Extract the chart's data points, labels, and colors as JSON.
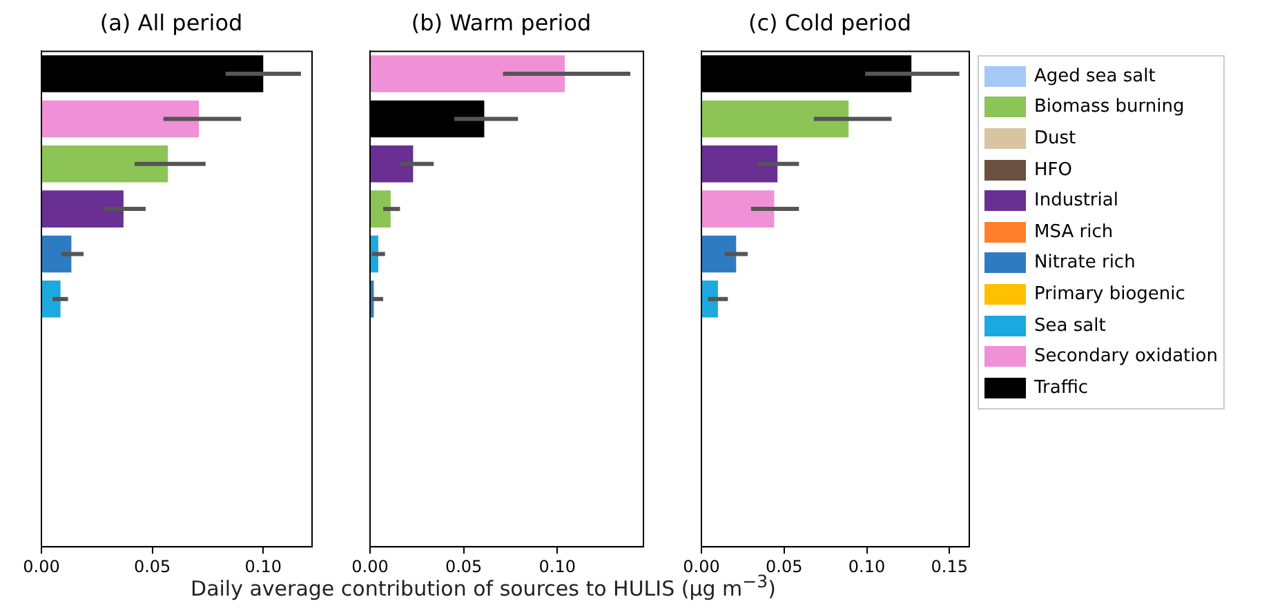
{
  "chart_data": [
    {
      "type": "bar",
      "title": "(a) All period",
      "orientation": "horizontal",
      "stacked": true,
      "tick_labels": "x",
      "legend": false,
      "categories": [
        null,
        null,
        null,
        null,
        null,
        null,
        null,
        null,
        null,
        null,
        null
      ],
      "xlim": [
        0,
        0.122
      ],
      "xticks": [
        {
          "value": 0,
          "label": "0.00"
        },
        {
          "value": 0.05,
          "label": "0.05"
        },
        {
          "value": 0.1,
          "label": "0.10"
        }
      ],
      "series": [
        {
          "color": "#a6c8f5",
          "values": [
            null,
            null,
            null,
            null,
            null,
            null,
            null,
            null,
            null,
            null,
            null
          ]
        },
        {
          "color": "#8cc456",
          "values": [
            null,
            null,
            0.057,
            null,
            null,
            null,
            null,
            null,
            null,
            null,
            null
          ],
          "errors": [
            null,
            null,
            [
              0.042,
              0.074
            ],
            null,
            null,
            null,
            null,
            null,
            null,
            null,
            null
          ]
        },
        {
          "color": "#d8c4a0",
          "values": [
            null,
            null,
            null,
            null,
            null,
            null,
            null,
            null,
            null,
            null,
            null
          ]
        },
        {
          "color": "#6b4f3f",
          "values": [
            null,
            null,
            null,
            null,
            null,
            null,
            null,
            null,
            null,
            null,
            null
          ]
        },
        {
          "color": "#6a2f92",
          "values": [
            null,
            null,
            null,
            0.037,
            null,
            null,
            null,
            null,
            null,
            null,
            null
          ],
          "errors": [
            null,
            null,
            null,
            [
              0.028,
              0.047
            ],
            null,
            null,
            null,
            null,
            null,
            null,
            null
          ]
        },
        {
          "color": "#ff7f2a",
          "values": [
            null,
            null,
            null,
            null,
            null,
            null,
            null,
            null,
            null,
            null,
            null
          ]
        },
        {
          "color": "#2f7bc2",
          "values": [
            null,
            null,
            null,
            null,
            0.0135,
            null,
            null,
            null,
            null,
            null,
            null
          ],
          "errors": [
            null,
            null,
            null,
            null,
            [
              0.009,
              0.019
            ],
            null,
            null,
            null,
            null,
            null,
            null
          ]
        },
        {
          "color": "#ffc000",
          "values": [
            null,
            null,
            null,
            null,
            null,
            null,
            null,
            null,
            null,
            null,
            null
          ]
        },
        {
          "color": "#1ba9e0",
          "values": [
            null,
            null,
            null,
            null,
            null,
            0.0086,
            null,
            null,
            null,
            null,
            null
          ],
          "errors": [
            null,
            null,
            null,
            null,
            null,
            [
              0.005,
              0.012
            ],
            null,
            null,
            null,
            null,
            null
          ]
        },
        {
          "color": "#f090d6",
          "values": [
            null,
            0.071,
            null,
            null,
            null,
            null,
            null,
            null,
            null,
            null,
            null
          ],
          "errors": [
            null,
            [
              0.055,
              0.09
            ],
            null,
            null,
            null,
            null,
            null,
            null,
            null,
            null,
            null
          ]
        },
        {
          "color": "#000000",
          "values": [
            0.1,
            null,
            null,
            null,
            null,
            null,
            null,
            null,
            null,
            null,
            null
          ],
          "errors": [
            [
              0.083,
              0.117
            ],
            null,
            null,
            null,
            null,
            null,
            null,
            null,
            null,
            null,
            null
          ]
        }
      ]
    },
    {
      "type": "bar",
      "title": "(b) Warm period",
      "orientation": "horizontal",
      "stacked": true,
      "tick_labels": "x",
      "legend": false,
      "xlabel": "Daily average contribution of sources to HULIS (µg m$^{−3}$)",
      "categories": [
        null,
        null,
        null,
        null,
        null,
        null,
        null,
        null,
        null,
        null,
        null
      ],
      "xlim": [
        0,
        0.146
      ],
      "xticks": [
        {
          "value": 0,
          "label": "0.00"
        },
        {
          "value": 0.05,
          "label": "0.05"
        },
        {
          "value": 0.1,
          "label": "0.10"
        }
      ],
      "series": [
        {
          "color": "#a6c8f5",
          "values": [
            null,
            null,
            null,
            null,
            null,
            null,
            null,
            null,
            null,
            null,
            null
          ]
        },
        {
          "color": "#8cc456",
          "values": [
            null,
            null,
            null,
            0.011,
            null,
            null,
            null,
            null,
            null,
            null,
            null
          ],
          "errors": [
            null,
            null,
            null,
            [
              0.007,
              0.016
            ],
            null,
            null,
            null,
            null,
            null,
            null,
            null
          ]
        },
        {
          "color": "#d8c4a0",
          "values": [
            null,
            null,
            null,
            null,
            null,
            null,
            null,
            null,
            null,
            null,
            null
          ]
        },
        {
          "color": "#6b4f3f",
          "values": [
            null,
            null,
            null,
            null,
            null,
            null,
            null,
            null,
            null,
            null,
            null
          ]
        },
        {
          "color": "#6a2f92",
          "values": [
            null,
            null,
            0.023,
            null,
            null,
            null,
            null,
            null,
            null,
            null,
            null
          ],
          "errors": [
            null,
            null,
            [
              0.016,
              0.034
            ],
            null,
            null,
            null,
            null,
            null,
            null,
            null,
            null
          ]
        },
        {
          "color": "#ff7f2a",
          "values": [
            null,
            null,
            null,
            null,
            null,
            null,
            null,
            null,
            null,
            null,
            null
          ]
        },
        {
          "color": "#2f7bc2",
          "values": [
            null,
            null,
            null,
            null,
            null,
            0.002,
            null,
            null,
            null,
            null,
            null
          ],
          "errors": [
            null,
            null,
            null,
            null,
            null,
            [
              0.001,
              0.007
            ],
            null,
            null,
            null,
            null,
            null
          ]
        },
        {
          "color": "#ffc000",
          "values": [
            null,
            null,
            null,
            null,
            null,
            null,
            null,
            null,
            null,
            null,
            null
          ]
        },
        {
          "color": "#1ba9e0",
          "values": [
            null,
            null,
            null,
            null,
            0.0044,
            null,
            null,
            null,
            null,
            null,
            null
          ],
          "errors": [
            null,
            null,
            null,
            null,
            [
              0.001,
              0.008
            ],
            null,
            null,
            null,
            null,
            null,
            null
          ]
        },
        {
          "color": "#f090d6",
          "values": [
            0.104,
            null,
            null,
            null,
            null,
            null,
            null,
            null,
            null,
            null,
            null
          ],
          "errors": [
            [
              0.071,
              0.139
            ],
            null,
            null,
            null,
            null,
            null,
            null,
            null,
            null,
            null,
            null
          ]
        },
        {
          "color": "#000000",
          "values": [
            null,
            0.061,
            null,
            null,
            null,
            null,
            null,
            null,
            null,
            null,
            null
          ],
          "errors": [
            null,
            [
              0.045,
              0.079
            ],
            null,
            null,
            null,
            null,
            null,
            null,
            null,
            null,
            null
          ]
        }
      ]
    },
    {
      "type": "bar",
      "title": "(c) Cold period",
      "orientation": "horizontal",
      "stacked": true,
      "tick_labels": "x",
      "legend": "right",
      "categories": [
        null,
        null,
        null,
        null,
        null,
        null,
        null,
        null,
        null,
        null,
        null
      ],
      "xlim": [
        0,
        0.162
      ],
      "xticks": [
        {
          "value": 0,
          "label": "0.00"
        },
        {
          "value": 0.05,
          "label": "0.05"
        },
        {
          "value": 0.1,
          "label": "0.10"
        },
        {
          "value": 0.15,
          "label": "0.15"
        }
      ],
      "series": [
        {
          "name": "Aged sea salt",
          "color": "#a6c8f5",
          "values": [
            null,
            null,
            null,
            null,
            null,
            null,
            null,
            null,
            null,
            null,
            null
          ]
        },
        {
          "name": "Biomass burning",
          "color": "#8cc456",
          "values": [
            null,
            0.089,
            null,
            null,
            null,
            null,
            null,
            null,
            null,
            null,
            null
          ],
          "errors": [
            null,
            [
              0.068,
              0.115
            ],
            null,
            null,
            null,
            null,
            null,
            null,
            null,
            null,
            null
          ]
        },
        {
          "name": "Dust",
          "color": "#d8c4a0",
          "values": [
            null,
            null,
            null,
            null,
            null,
            null,
            null,
            null,
            null,
            null,
            null
          ]
        },
        {
          "name": "HFO",
          "color": "#6b4f3f",
          "values": [
            null,
            null,
            null,
            null,
            null,
            null,
            null,
            null,
            null,
            null,
            null
          ]
        },
        {
          "name": "Industrial",
          "color": "#6a2f92",
          "values": [
            null,
            null,
            0.046,
            null,
            null,
            null,
            null,
            null,
            null,
            null,
            null
          ],
          "errors": [
            null,
            null,
            [
              0.034,
              0.059
            ],
            null,
            null,
            null,
            null,
            null,
            null,
            null,
            null
          ]
        },
        {
          "name": "MSA rich",
          "color": "#ff7f2a",
          "values": [
            null,
            null,
            null,
            null,
            null,
            null,
            null,
            null,
            null,
            null,
            null
          ]
        },
        {
          "name": "Nitrate rich",
          "color": "#2f7bc2",
          "values": [
            null,
            null,
            null,
            null,
            0.021,
            null,
            null,
            null,
            null,
            null,
            null
          ],
          "errors": [
            null,
            null,
            null,
            null,
            [
              0.014,
              0.028
            ],
            null,
            null,
            null,
            null,
            null,
            null
          ]
        },
        {
          "name": "Primary biogenic",
          "color": "#ffc000",
          "values": [
            null,
            null,
            null,
            null,
            null,
            null,
            null,
            null,
            null,
            null,
            null
          ]
        },
        {
          "name": "Sea salt",
          "color": "#1ba9e0",
          "values": [
            null,
            null,
            null,
            null,
            null,
            0.01,
            null,
            null,
            null,
            null,
            null
          ],
          "errors": [
            null,
            null,
            null,
            null,
            null,
            [
              0.004,
              0.016
            ],
            null,
            null,
            null,
            null,
            null
          ]
        },
        {
          "name": "Secondary oxidation",
          "color": "#f090d6",
          "values": [
            null,
            null,
            null,
            0.044,
            null,
            null,
            null,
            null,
            null,
            null,
            null
          ],
          "errors": [
            null,
            null,
            null,
            [
              0.03,
              0.059
            ],
            null,
            null,
            null,
            null,
            null,
            null,
            null
          ]
        },
        {
          "name": "Traffic",
          "color": "#000000",
          "values": [
            0.127,
            null,
            null,
            null,
            null,
            null,
            null,
            null,
            null,
            null,
            null
          ],
          "errors": [
            [
              0.099,
              0.156
            ],
            null,
            null,
            null,
            null,
            null,
            null,
            null,
            null,
            null,
            null
          ]
        }
      ]
    }
  ]
}
